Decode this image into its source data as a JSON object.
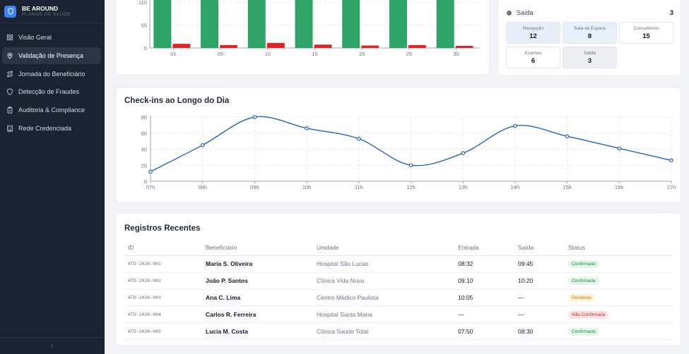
{
  "brand": {
    "name": "BE AROUND",
    "subtitle": "PLANOS DE SAÚDE"
  },
  "sidebar": {
    "items": [
      {
        "label": "Visão Geral",
        "icon": "grid-icon",
        "active": false
      },
      {
        "label": "Validação de Presença",
        "icon": "location-pin-icon",
        "active": true
      },
      {
        "label": "Jornada do Beneficiário",
        "icon": "route-icon",
        "active": false
      },
      {
        "label": "Detecção de Fraudes",
        "icon": "shield-icon",
        "active": false
      },
      {
        "label": "Auditoria & Compliance",
        "icon": "clipboard-check-icon",
        "active": false
      },
      {
        "label": "Rede Credenciada",
        "icon": "building-icon",
        "active": false
      }
    ],
    "collapse_glyph": "‹"
  },
  "status_panel": {
    "legend": {
      "label": "Saída",
      "count": "3"
    },
    "tiles": [
      {
        "label": "Recepção",
        "value": "12",
        "bg": "#e8eef8"
      },
      {
        "label": "Sala de Espera",
        "value": "8",
        "bg": "#e7f1fb"
      },
      {
        "label": "Consultórios",
        "value": "15",
        "bg": "#ffffff"
      },
      {
        "label": "Exames",
        "value": "6",
        "bg": "#ffffff"
      },
      {
        "label": "Saída",
        "value": "3",
        "bg": "#eceef2"
      }
    ]
  },
  "monthly_chart": {
    "chart_data": {
      "type": "bar",
      "categories": [
        "01",
        "05",
        "10",
        "15",
        "20",
        "25",
        "30"
      ],
      "series": [
        {
          "values": [
            110,
            110,
            110,
            110,
            110,
            110,
            110
          ],
          "color": "#2ea566"
        },
        {
          "values": [
            10,
            7,
            12,
            8,
            6,
            7,
            5
          ],
          "color": "#dc2626"
        }
      ],
      "yticks": [
        "110",
        "55",
        "0"
      ],
      "ylim": [
        0,
        110
      ]
    }
  },
  "line_card": {
    "title": "Check-ins ao Longo do Dia",
    "chart_data": {
      "type": "line",
      "x": [
        "07h",
        "08h",
        "09h",
        "10h",
        "11h",
        "12h",
        "13h",
        "14h",
        "15h",
        "16h",
        "17h"
      ],
      "values": [
        12,
        45,
        80,
        66,
        53,
        20,
        35,
        69,
        56,
        41,
        26
      ],
      "yticks": [
        "80",
        "60",
        "40",
        "20",
        "0"
      ],
      "ylim": [
        0,
        80
      ],
      "color": "#2563b8",
      "grid": true
    }
  },
  "records": {
    "title": "Registros Recentes",
    "headers": {
      "id": "ID",
      "beneficiary": "Beneficiário",
      "unit": "Unidade",
      "entry": "Entrada",
      "exit": "Saída",
      "status": "Status"
    },
    "rows": [
      {
        "id": "ATD-2026-001",
        "beneficiary": "Maria S. Oliveira",
        "unit": "Hospital São Lucas",
        "entry": "08:32",
        "exit": "09:45",
        "status": "Confirmada",
        "tone": "green"
      },
      {
        "id": "ATD-2026-002",
        "beneficiary": "João P. Santos",
        "unit": "Clínica Vida Nova",
        "entry": "09:10",
        "exit": "10:20",
        "status": "Confirmada",
        "tone": "green"
      },
      {
        "id": "ATD-2026-003",
        "beneficiary": "Ana C. Lima",
        "unit": "Centro Médico Paulista",
        "entry": "10:05",
        "exit": "—",
        "status": "Pendente",
        "tone": "yellow"
      },
      {
        "id": "ATD-2026-004",
        "beneficiary": "Carlos R. Ferreira",
        "unit": "Hospital Santa Maria",
        "entry": "—",
        "exit": "—",
        "status": "Não Confirmada",
        "tone": "red"
      },
      {
        "id": "ATD-2026-005",
        "beneficiary": "Lucia M. Costa",
        "unit": "Clínica Saúde Total",
        "entry": "07:50",
        "exit": "08:30",
        "status": "Confirmada",
        "tone": "green"
      }
    ]
  }
}
